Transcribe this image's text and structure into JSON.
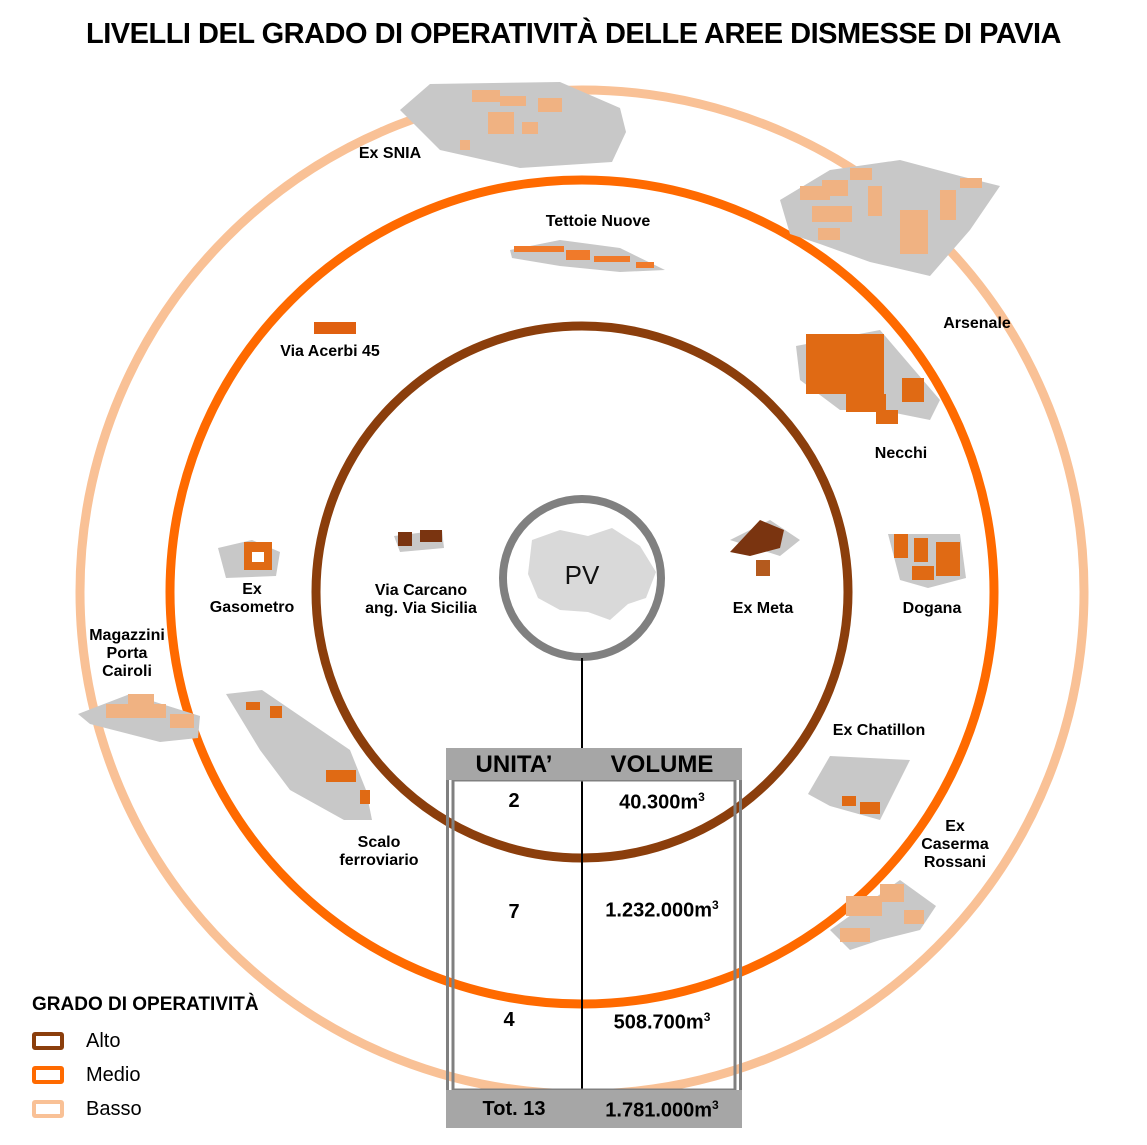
{
  "title": "LIVELLI DEL GRADO DI OPERATIVITÀ DELLE AREE DISMESSE DI PAVIA",
  "center_label": "PV",
  "colors": {
    "alto": "#8b3e0c",
    "medio": "#ff6a00",
    "basso": "#f9c196",
    "center_ring": "#808080",
    "site_ground": "#c8c8c8"
  },
  "sites": {
    "ex_snia": "Ex SNIA",
    "tettoie_nuove": "Tettoie Nuove",
    "arsenale": "Arsenale",
    "via_acerbi": "Via Acerbi 45",
    "necchi": "Necchi",
    "ex_gasometro": "Ex\nGasometro",
    "via_carcano": "Via Carcano\nang. Via Sicilia",
    "ex_meta": "Ex Meta",
    "dogana": "Dogana",
    "magazzini": "Magazzini\nPorta\nCairoli",
    "ex_chatillon": "Ex Chatillon",
    "scalo": "Scalo\nferroviario",
    "ex_caserma": "Ex\nCaserma\nRossani"
  },
  "table": {
    "headers": {
      "unita": "UNITA’",
      "volume": "VOLUME"
    },
    "rows": [
      {
        "level": "alto",
        "units": "2",
        "volume": "40.300m",
        "unit_exp": "3"
      },
      {
        "level": "medio",
        "units": "7",
        "volume": "1.232.000m",
        "unit_exp": "3"
      },
      {
        "level": "basso",
        "units": "4",
        "volume": "508.700m",
        "unit_exp": "3"
      }
    ],
    "total": {
      "units": "Tot. 13",
      "volume": "1.781.000m",
      "unit_exp": "3"
    }
  },
  "legend": {
    "title": "GRADO DI OPERATIVITÀ",
    "items": [
      {
        "key": "alto",
        "label": "Alto"
      },
      {
        "key": "medio",
        "label": "Medio"
      },
      {
        "key": "basso",
        "label": "Basso"
      }
    ]
  }
}
